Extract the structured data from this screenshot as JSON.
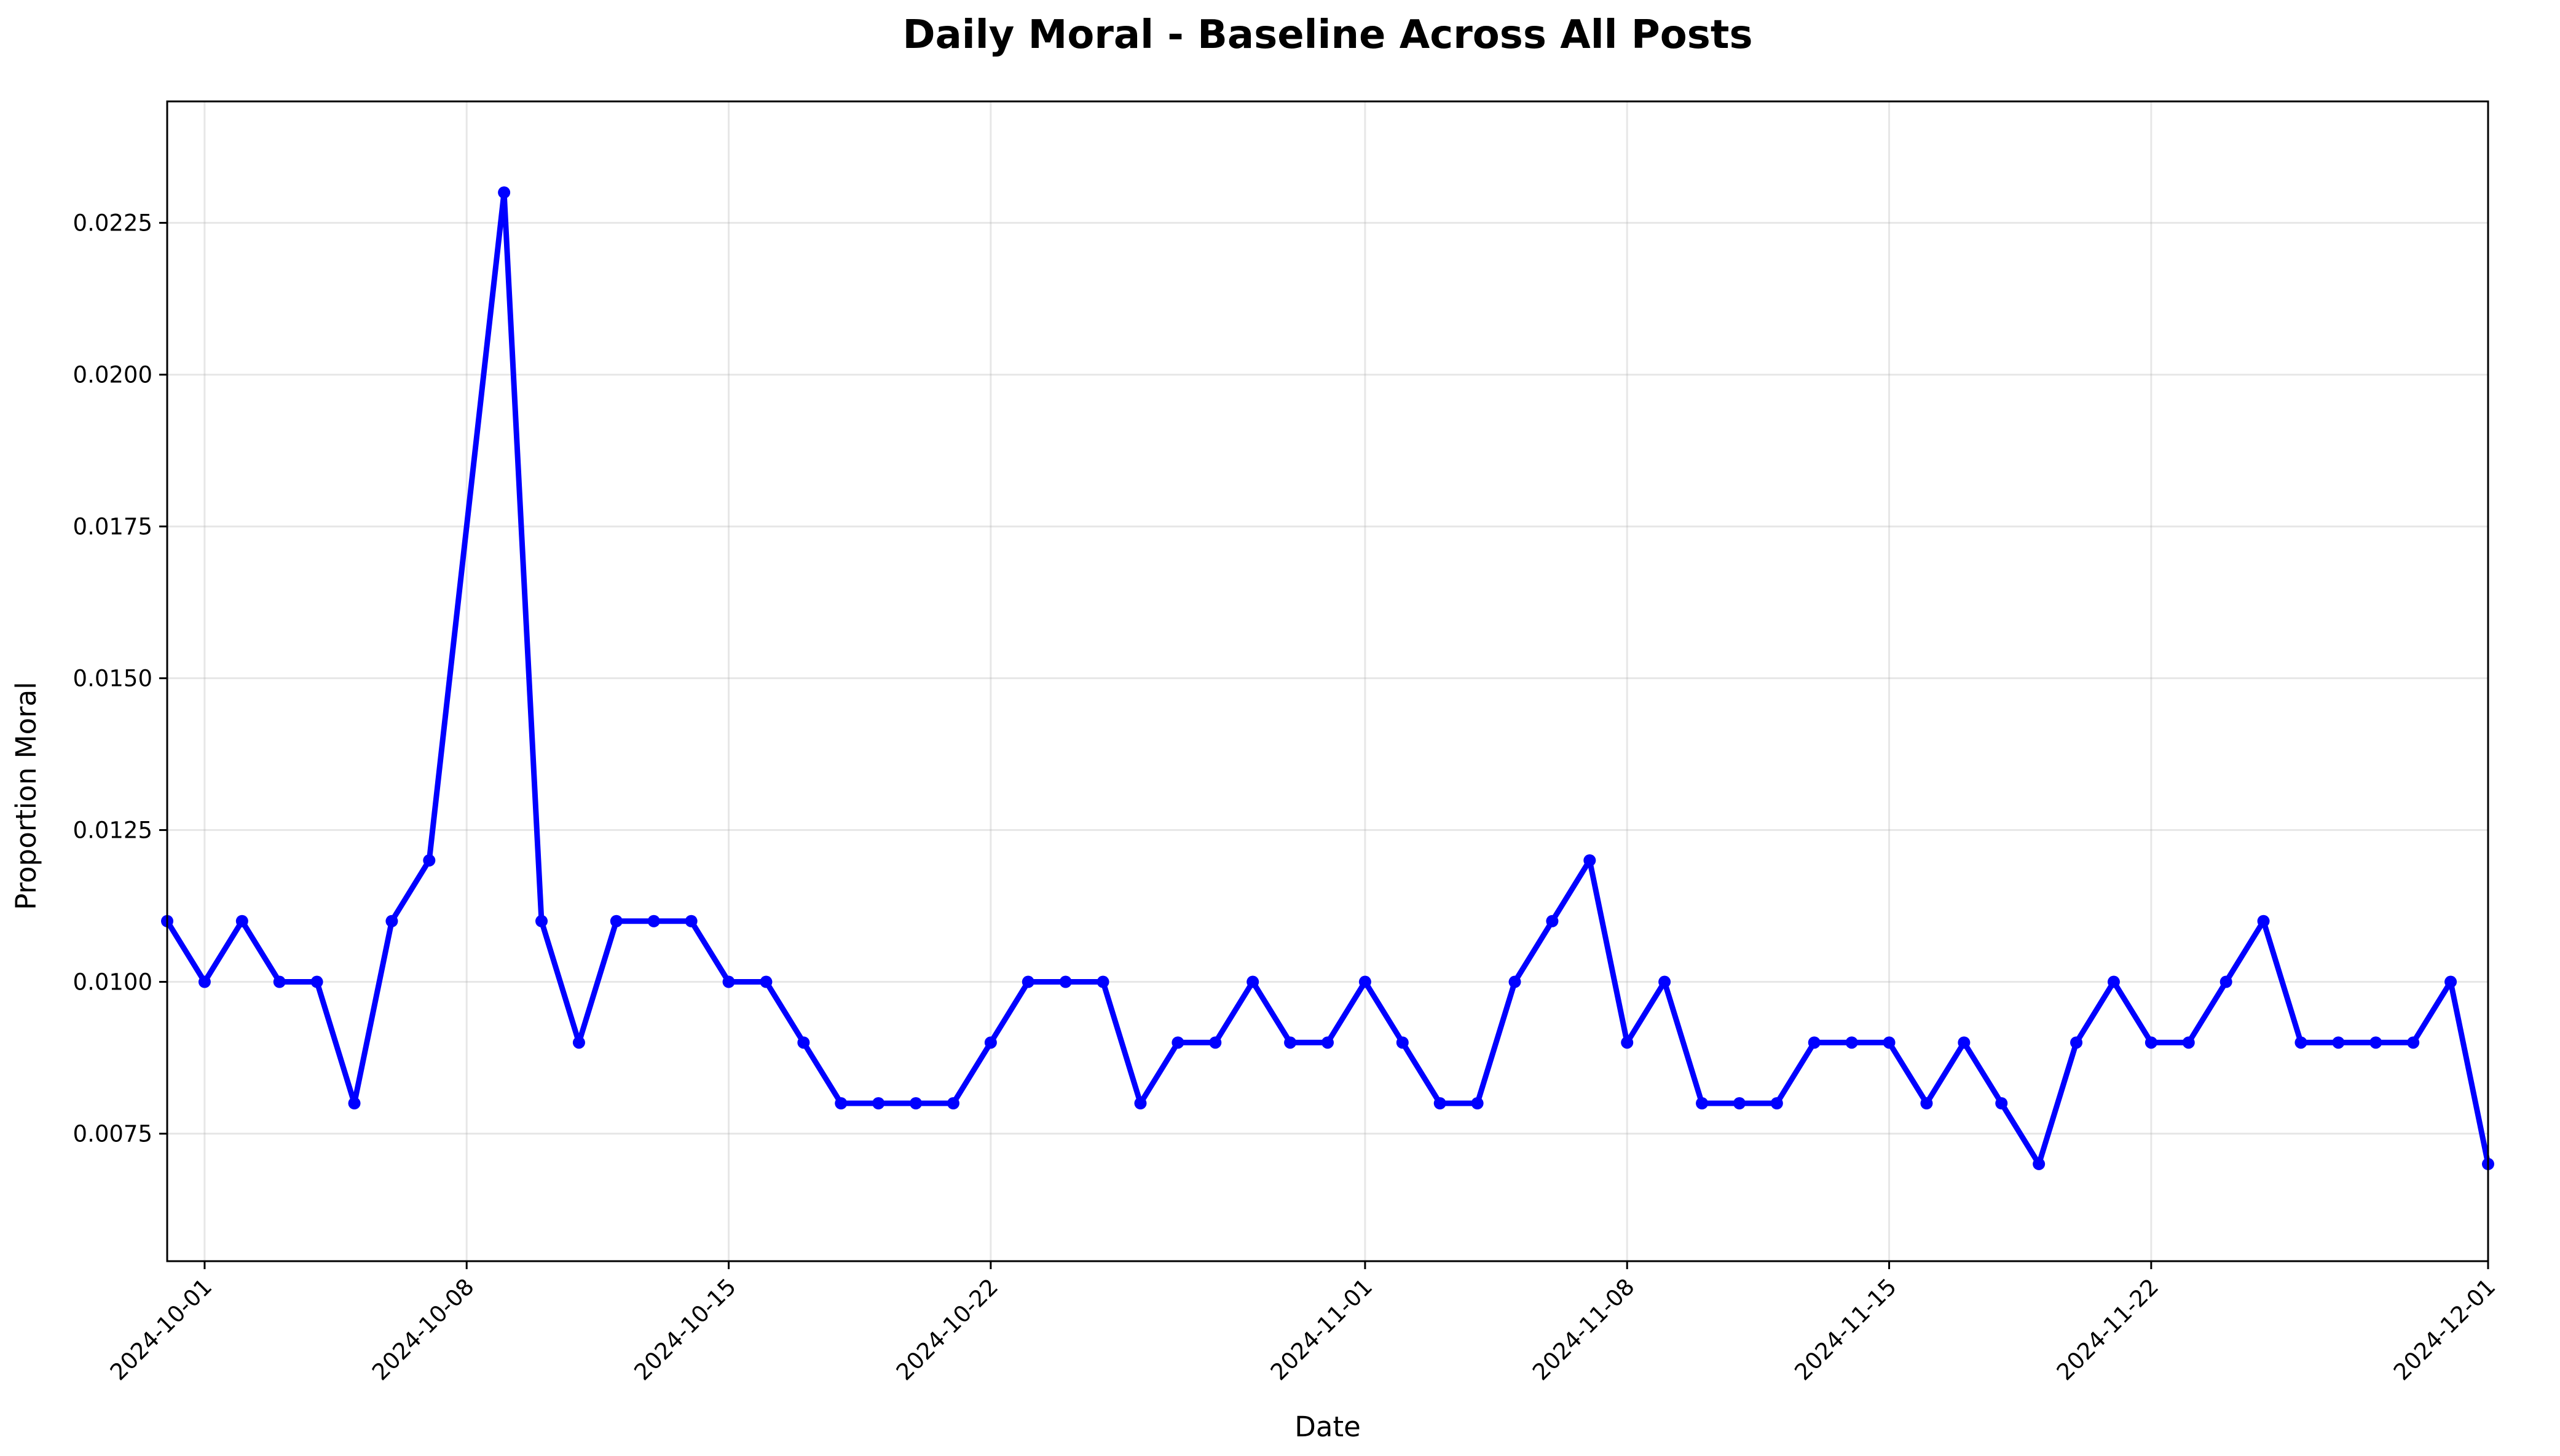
{
  "chart_data": {
    "type": "line",
    "title": "Daily Moral - Baseline Across All Posts",
    "xlabel": "Date",
    "ylabel": "Proportion Moral",
    "grid": true,
    "line_color": "#0000ff",
    "xlim": [
      "2024-09-30",
      "2024-12-01"
    ],
    "ylim": [
      0.0054,
      0.0245
    ],
    "x_ticks": [
      "2024-10-01",
      "2024-10-08",
      "2024-10-15",
      "2024-10-22",
      "2024-11-01",
      "2024-11-08",
      "2024-11-15",
      "2024-11-22",
      "2024-12-01"
    ],
    "y_ticks": [
      "0.0075",
      "0.0100",
      "0.0125",
      "0.0150",
      "0.0175",
      "0.0200",
      "0.0225"
    ],
    "series": [
      {
        "x": [
          "2024-09-30",
          "2024-10-01",
          "2024-10-02",
          "2024-10-03",
          "2024-10-04",
          "2024-10-05",
          "2024-10-06",
          "2024-10-07",
          "2024-10-09",
          "2024-10-10",
          "2024-10-11",
          "2024-10-12",
          "2024-10-13",
          "2024-10-14",
          "2024-10-15",
          "2024-10-16",
          "2024-10-17",
          "2024-10-18",
          "2024-10-19",
          "2024-10-20",
          "2024-10-21",
          "2024-10-22",
          "2024-10-23",
          "2024-10-24",
          "2024-10-25",
          "2024-10-26",
          "2024-10-27",
          "2024-10-28",
          "2024-10-29",
          "2024-10-30",
          "2024-10-31",
          "2024-11-01",
          "2024-11-02",
          "2024-11-03",
          "2024-11-04",
          "2024-11-05",
          "2024-11-06",
          "2024-11-07",
          "2024-11-08",
          "2024-11-09",
          "2024-11-10",
          "2024-11-11",
          "2024-11-12",
          "2024-11-13",
          "2024-11-14",
          "2024-11-15",
          "2024-11-16",
          "2024-11-17",
          "2024-11-18",
          "2024-11-19",
          "2024-11-20",
          "2024-11-21",
          "2024-11-22",
          "2024-11-23",
          "2024-11-24",
          "2024-11-25",
          "2024-11-26",
          "2024-11-27",
          "2024-11-28",
          "2024-11-29",
          "2024-11-30",
          "2024-12-01"
        ],
        "values": [
          0.011,
          0.01,
          0.011,
          0.01,
          0.01,
          0.008,
          0.011,
          0.012,
          0.023,
          0.011,
          0.009,
          0.011,
          0.011,
          0.011,
          0.01,
          0.01,
          0.009,
          0.008,
          0.008,
          0.008,
          0.008,
          0.009,
          0.01,
          0.01,
          0.01,
          0.008,
          0.009,
          0.009,
          0.01,
          0.009,
          0.009,
          0.01,
          0.009,
          0.008,
          0.008,
          0.01,
          0.011,
          0.012,
          0.009,
          0.01,
          0.008,
          0.008,
          0.008,
          0.009,
          0.009,
          0.009,
          0.008,
          0.009,
          0.008,
          0.007,
          0.009,
          0.01,
          0.009,
          0.009,
          0.01,
          0.011,
          0.009,
          0.009,
          0.009,
          0.009,
          0.01,
          0.007
        ]
      }
    ]
  }
}
